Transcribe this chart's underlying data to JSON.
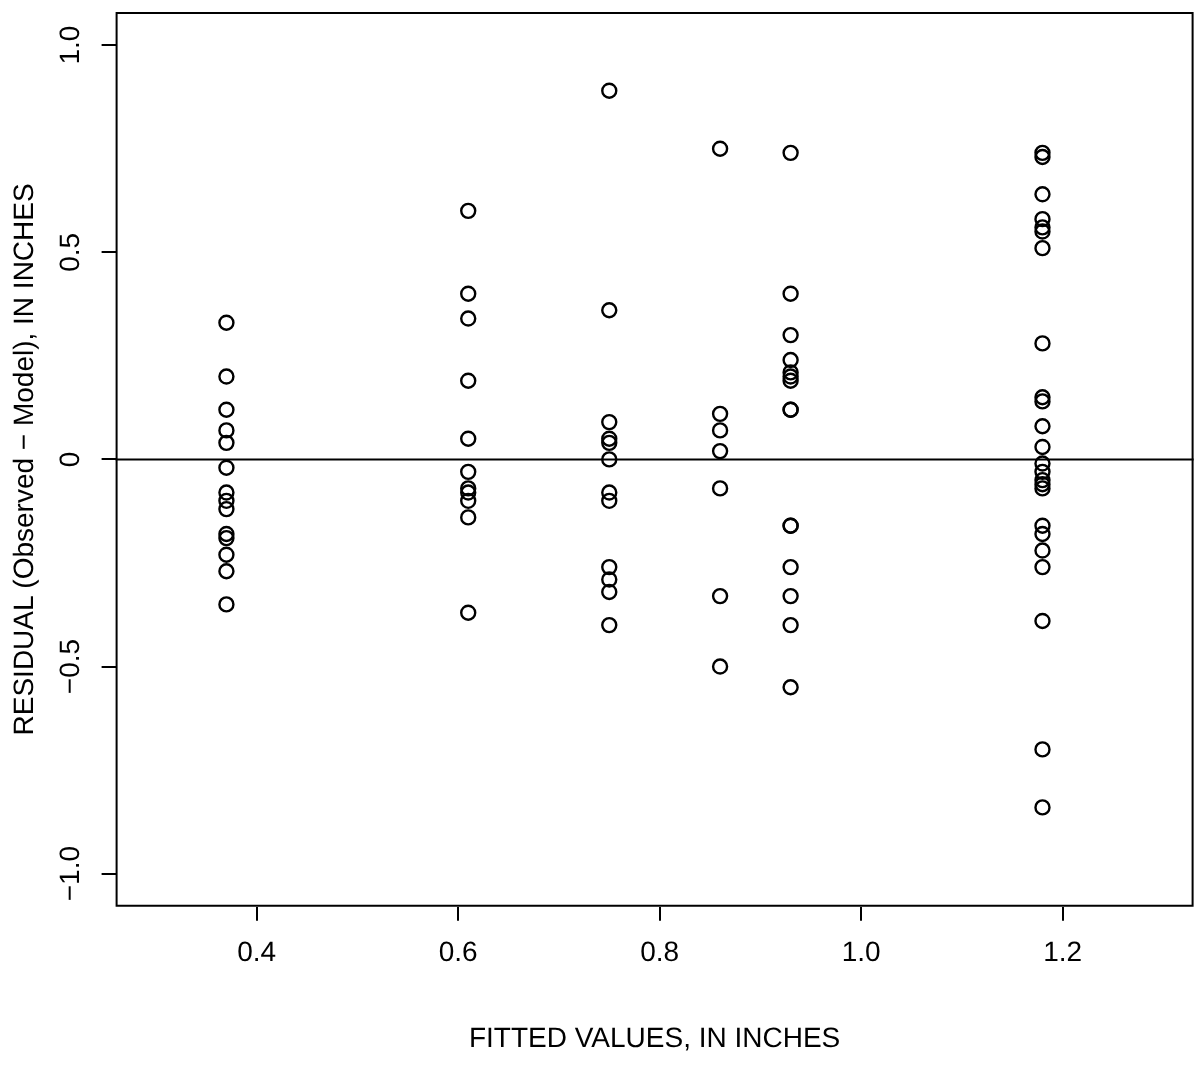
{
  "chart_data": {
    "type": "scatter",
    "xlabel": "FITTED VALUES, IN INCHES",
    "ylabel": "RESIDUAL (Observed − Model), IN INCHES",
    "series": [
      {
        "color": "#000000",
        "x": [
          0.37,
          0.37,
          0.37,
          0.37,
          0.37,
          0.37,
          0.37,
          0.37,
          0.37,
          0.37,
          0.37,
          0.37,
          0.37,
          0.37,
          0.61,
          0.61,
          0.61,
          0.61,
          0.61,
          0.61,
          0.61,
          0.61,
          0.61,
          0.61,
          0.61,
          0.75,
          0.75,
          0.75,
          0.75,
          0.75,
          0.75,
          0.75,
          0.75,
          0.75,
          0.75,
          0.75,
          0.75,
          0.86,
          0.86,
          0.86,
          0.86,
          0.86,
          0.86,
          0.86,
          0.93,
          0.93,
          0.93,
          0.93,
          0.93,
          0.93,
          0.93,
          0.93,
          0.93,
          0.93,
          0.93,
          0.93,
          0.93,
          0.93,
          0.93,
          1.18,
          1.18,
          1.18,
          1.18,
          1.18,
          1.18,
          1.18,
          1.18,
          1.18,
          1.18,
          1.18,
          1.18,
          1.18,
          1.18,
          1.18,
          1.18,
          1.18,
          1.18,
          1.18,
          1.18,
          1.18,
          1.18,
          1.18,
          1.18
        ],
        "values": [
          0.33,
          0.2,
          0.12,
          0.07,
          0.04,
          -0.02,
          -0.08,
          -0.1,
          -0.12,
          -0.18,
          -0.19,
          -0.23,
          -0.27,
          -0.35,
          0.6,
          0.4,
          0.34,
          0.19,
          0.05,
          -0.03,
          -0.07,
          -0.08,
          -0.1,
          -0.14,
          -0.37,
          0.89,
          0.36,
          0.09,
          0.05,
          0.04,
          0,
          -0.08,
          -0.1,
          -0.26,
          -0.29,
          -0.32,
          -0.4,
          0.75,
          0.11,
          0.07,
          0.02,
          -0.07,
          -0.33,
          -0.5,
          0.74,
          0.4,
          0.3,
          0.24,
          0.21,
          0.2,
          0.19,
          0.12,
          0.12,
          -0.16,
          -0.16,
          -0.26,
          -0.33,
          -0.4,
          -0.55,
          0.74,
          0.73,
          0.64,
          0.58,
          0.56,
          0.55,
          0.51,
          0.28,
          0.15,
          0.14,
          0.08,
          0.03,
          -0.01,
          -0.03,
          -0.05,
          -0.06,
          -0.07,
          -0.16,
          -0.18,
          -0.22,
          -0.26,
          -0.39,
          -0.7,
          -0.84
        ]
      }
    ],
    "marker": "circle",
    "xlim": [
      0.26,
      1.33
    ],
    "ylim": [
      -1.08,
      1.08
    ],
    "xticks": [
      0.4,
      0.6,
      0.8,
      {
        "value": 1,
        "label": "1.0"
      },
      1.2
    ],
    "yticks": [
      {
        "value": -1,
        "label": "−1.0"
      },
      {
        "value": -0.5,
        "label": "−0.5"
      },
      0,
      0.5,
      {
        "value": 1,
        "label": "1.0"
      }
    ],
    "ref_lines": [
      {
        "axis": "y",
        "value": 0,
        "color": "#000000"
      }
    ],
    "grid": false,
    "legend": false
  }
}
